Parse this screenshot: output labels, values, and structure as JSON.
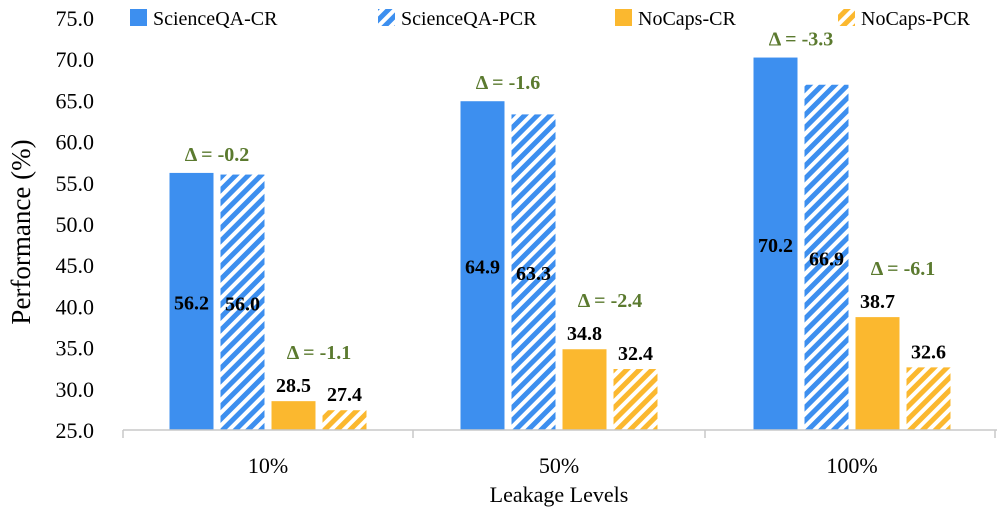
{
  "chart_data": {
    "type": "bar",
    "categories": [
      "10%",
      "50%",
      "100%"
    ],
    "xlabel": "Leakage Levels",
    "ylabel": "Performance (%)",
    "ylim": [
      25.0,
      75.0
    ],
    "ytick_step": 5,
    "yticks": [
      "25.0",
      "30.0",
      "35.0",
      "40.0",
      "45.0",
      "50.0",
      "55.0",
      "60.0",
      "65.0",
      "70.0",
      "75.0"
    ],
    "legend_position": "top",
    "grid": false,
    "series": [
      {
        "name": "ScienceQA-CR",
        "values": [
          56.2,
          64.9,
          70.2
        ],
        "labels": [
          "56.2",
          "64.9",
          "70.2"
        ],
        "color": "#3d8fef",
        "pattern": "solid"
      },
      {
        "name": "ScienceQA-PCR",
        "values": [
          56.0,
          63.3,
          66.9
        ],
        "labels": [
          "56.0",
          "63.3",
          "66.9"
        ],
        "color": "#3d8fef",
        "pattern": "hatched"
      },
      {
        "name": "NoCaps-CR",
        "values": [
          28.5,
          34.8,
          38.7
        ],
        "labels": [
          "28.5",
          "34.8",
          "38.7"
        ],
        "color": "#fbb82f",
        "pattern": "solid"
      },
      {
        "name": "NoCaps-PCR",
        "values": [
          27.4,
          32.4,
          32.6
        ],
        "labels": [
          "27.4",
          "32.4",
          "32.6"
        ],
        "color": "#fbb82f",
        "pattern": "hatched"
      }
    ],
    "annotations": {
      "scienceqa": [
        "Δ = -0.2",
        "Δ = -1.6",
        "Δ = -3.3"
      ],
      "nocaps": [
        "Δ = -1.1",
        "Δ = -2.4",
        "Δ = -6.1"
      ]
    }
  }
}
